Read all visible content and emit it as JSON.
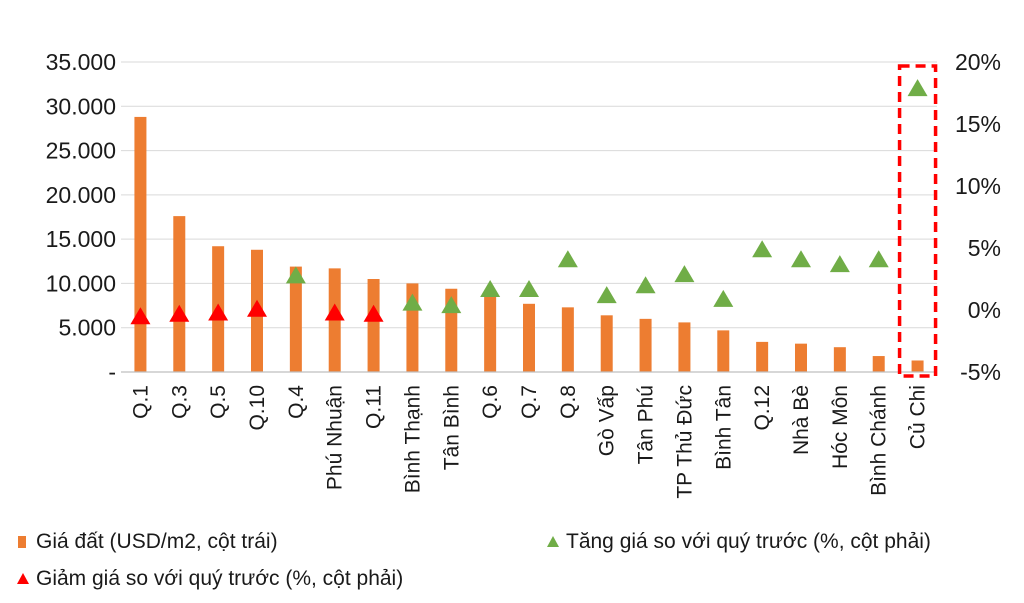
{
  "chart_data": {
    "type": "bar",
    "categories": [
      "Q.1",
      "Q.3",
      "Q.5",
      "Q.10",
      "Q.4",
      "Phú Nhuận",
      "Q.11",
      "Bình Thạnh",
      "Tân Bình",
      "Q.6",
      "Q.7",
      "Q.8",
      "Gò Vấp",
      "Tân Phú",
      "TP Thủ Đức",
      "Bình Tân",
      "Q.12",
      "Nhà Bè",
      "Hóc Môn",
      "Bình Chánh",
      "Củ Chi"
    ],
    "series": [
      {
        "name": "Giá đất (USD/m2, cột trái)",
        "type": "bar",
        "axis": "left",
        "color": "#ED7D31",
        "values": [
          28800,
          17600,
          14200,
          13800,
          11900,
          11700,
          10500,
          10000,
          9400,
          8800,
          7700,
          7300,
          6400,
          6000,
          5600,
          4700,
          3400,
          3200,
          2800,
          1800,
          1300
        ]
      },
      {
        "name": "Tăng giá so với quý trước (%, cột phải)",
        "type": "scatter",
        "marker": "triangle-up",
        "axis": "right",
        "color": "#70AD47",
        "points": [
          [
            4,
            2.7
          ],
          [
            7,
            0.5
          ],
          [
            8,
            0.3
          ],
          [
            9,
            1.6
          ],
          [
            10,
            1.6
          ],
          [
            11,
            4.0
          ],
          [
            12,
            1.1
          ],
          [
            13,
            1.9
          ],
          [
            14,
            2.8
          ],
          [
            15,
            0.8
          ],
          [
            16,
            4.8
          ],
          [
            17,
            4.0
          ],
          [
            18,
            3.6
          ],
          [
            19,
            4.0
          ],
          [
            20,
            17.8
          ]
        ]
      },
      {
        "name": "Giảm giá so với quý trước (%, cột phải)",
        "type": "scatter",
        "marker": "triangle-up",
        "axis": "right",
        "color": "#FF0000",
        "points": [
          [
            0,
            -0.6
          ],
          [
            1,
            -0.4
          ],
          [
            2,
            -0.3
          ],
          [
            3,
            0.0
          ],
          [
            5,
            -0.3
          ],
          [
            6,
            -0.4
          ]
        ]
      }
    ],
    "y_left": {
      "range": [
        0,
        35000
      ],
      "ticks": [
        0,
        5000,
        10000,
        15000,
        20000,
        25000,
        30000,
        35000
      ],
      "tick_labels": [
        "-",
        "5.000",
        "10.000",
        "15.000",
        "20.000",
        "25.000",
        "30.000",
        "35.000"
      ]
    },
    "y_right": {
      "range": [
        -5,
        20
      ],
      "ticks": [
        -5,
        0,
        5,
        10,
        15,
        20
      ],
      "tick_labels": [
        "-5%",
        "0%",
        "5%",
        "10%",
        "15%",
        "20%"
      ]
    },
    "grid": true,
    "highlight": {
      "category": "Củ Chi",
      "style": "dashed-box",
      "color": "#FF0000"
    },
    "legend": {
      "placement": "bottom",
      "items": [
        {
          "label": "Giá đất (USD/m2, cột trái)",
          "marker": "square",
          "color": "#ED7D31"
        },
        {
          "label": "Tăng giá so với quý trước (%, cột phải)",
          "marker": "triangle",
          "color": "#70AD47"
        },
        {
          "label": "Giảm giá so với quý trước (%, cột phải)",
          "marker": "triangle",
          "color": "#FF0000"
        }
      ]
    }
  }
}
